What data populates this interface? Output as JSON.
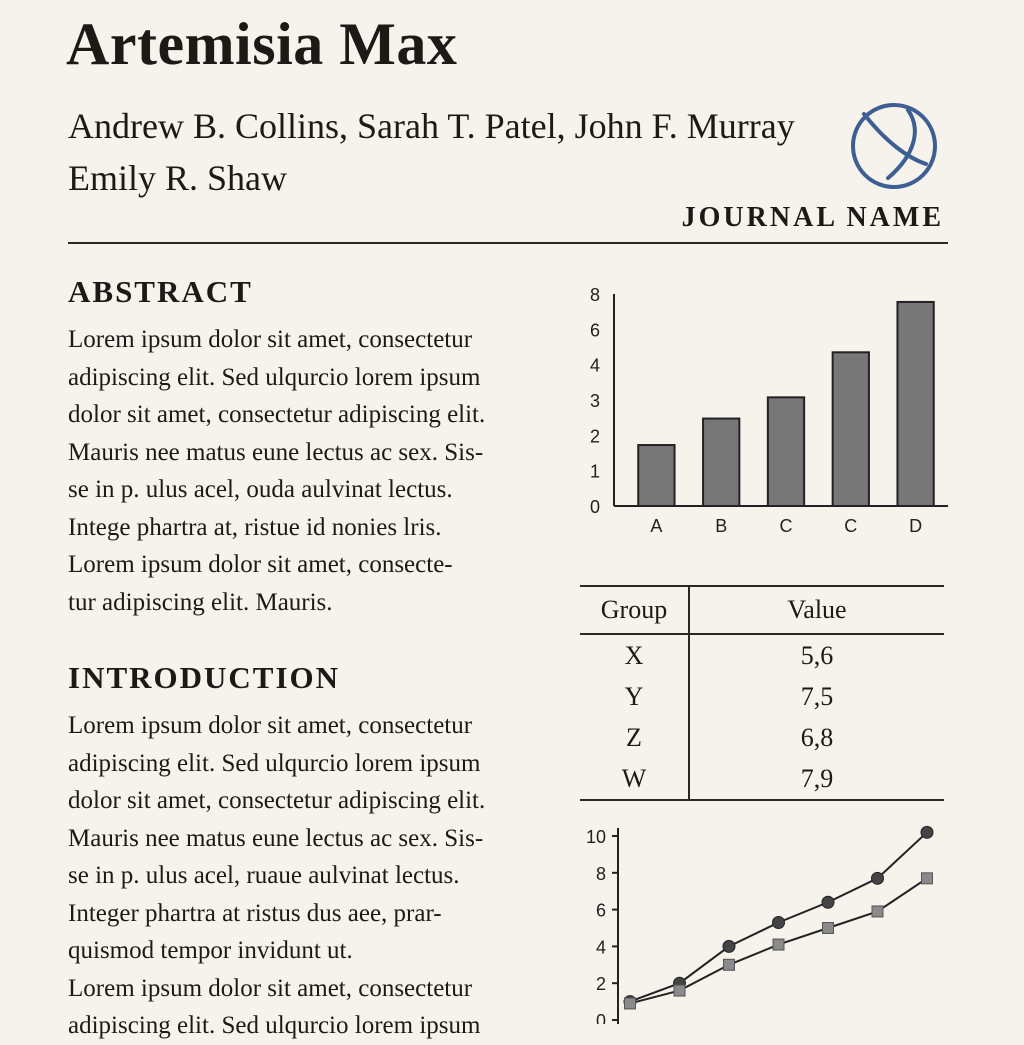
{
  "paper": {
    "title": "Artemisia Max",
    "authors_line1": "Andrew B. Collins, Sarah T. Patel, John F. Murray",
    "authors_line2": "Emily R. Shaw",
    "journal": "JOURNAL NAME",
    "logo_icon": "globe-circle-icon",
    "accent_color": "#3d5f93"
  },
  "abstract": {
    "heading": "ABSTRACT",
    "lines": [
      "Lorem ipsum dolor sit amet, consectetur",
      "adipiscing elit. Sed ulqurcio lorem ipsum",
      "dolor sit amet, consectetur adipiscing elit.",
      "Mauris nee matus eune lectus ac sex. Sis-",
      "se in p. ulus acel, ouda aulvinat lectus.",
      "Intege phartra at, ristue id nonies lris.",
      "Lorem ipsum dolor sit amet, consecte-",
      "tur adipiscing elit. Mauris."
    ]
  },
  "introduction": {
    "heading": "INTRODUCTION",
    "lines": [
      "Lorem ipsum dolor sit amet, consectetur",
      "adipiscing elit. Sed ulqurcio lorem ipsum",
      "dolor sit amet, consectetur adipiscing elit.",
      "Mauris nee matus eune lectus ac sex. Sis-",
      "se in p. ulus acel, ruaue aulvinat lectus.",
      "Integer phartra at ristus dus aee, prar-",
      "quismod tempor invidunt ut.",
      "Lorem ipsum dolor sit amet, consectetur",
      "adipiscing elit. Sed ulqurcio lorem ipsum"
    ]
  },
  "table": {
    "headers": [
      "Group",
      "Value"
    ],
    "rows": [
      [
        "X",
        "5,6"
      ],
      [
        "Y",
        "7,5"
      ],
      [
        "Z",
        "6,8"
      ],
      [
        "W",
        "7,9"
      ]
    ]
  },
  "chart_data": [
    {
      "type": "bar",
      "title": "",
      "xlabel": "",
      "ylabel": "",
      "categories": [
        "A",
        "B",
        "C",
        "C",
        "D"
      ],
      "values": [
        2.3,
        3.3,
        4.1,
        5.8,
        7.7
      ],
      "ytick_labels": [
        "0",
        "1",
        "2",
        "3",
        "4",
        "6",
        "8"
      ],
      "ylim": [
        0,
        8
      ],
      "bar_color": "#777777",
      "grid": false
    },
    {
      "type": "line",
      "title": "",
      "xlabel": "",
      "ylabel": "",
      "x": [
        1,
        2,
        3,
        4,
        5,
        6,
        7
      ],
      "series": [
        {
          "marker": "circle",
          "color": "#444444",
          "values": [
            1.0,
            2.0,
            4.0,
            5.3,
            6.4,
            7.7,
            10.2
          ]
        },
        {
          "marker": "square",
          "color": "#8a8a8a",
          "values": [
            0.9,
            1.6,
            3.0,
            4.1,
            5.0,
            5.9,
            7.7
          ]
        }
      ],
      "yticks": [
        0,
        2,
        4,
        6,
        8,
        10
      ],
      "ylim": [
        0,
        10
      ],
      "grid": false
    }
  ]
}
